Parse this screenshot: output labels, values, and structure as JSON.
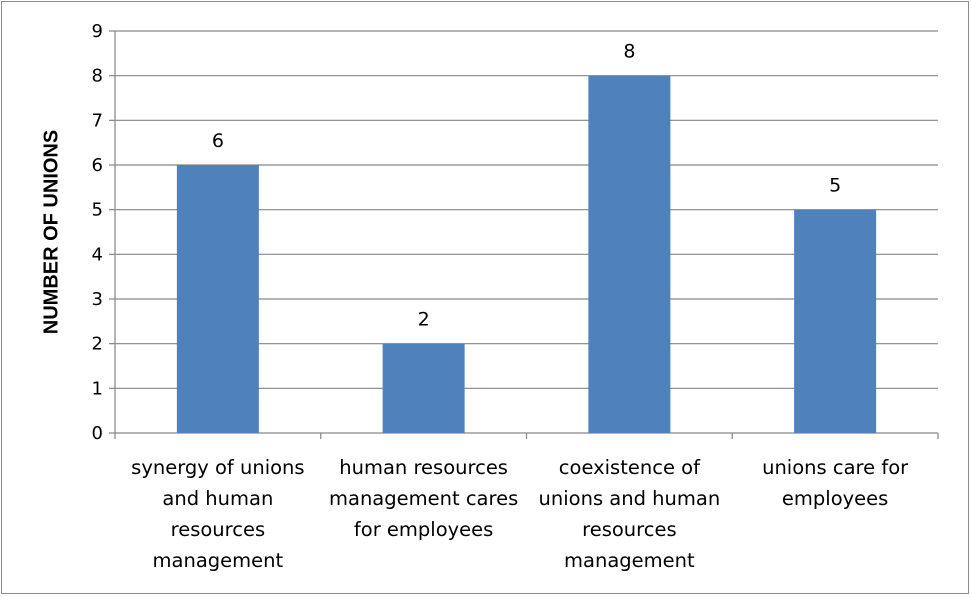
{
  "chart_data": {
    "type": "bar",
    "title": "",
    "xlabel": "",
    "ylabel": "NUMBER OF UNIONS",
    "ylim": [
      0,
      9
    ],
    "yticks": [
      "0",
      "1",
      "2",
      "3",
      "4",
      "5",
      "6",
      "7",
      "8",
      "9"
    ],
    "categories": [
      "synergy of unions and human resources management",
      "human resources management cares for employees",
      "coexistence of unions and human resources management",
      "unions care for employees"
    ],
    "category_lines": [
      [
        "synergy of unions",
        "and human",
        "resources",
        "management"
      ],
      [
        "human resources",
        "management cares",
        "for employees"
      ],
      [
        "coexistence of",
        "unions and human",
        "resources",
        "management"
      ],
      [
        "unions care for",
        "employees"
      ]
    ],
    "values": [
      6,
      2,
      8,
      5
    ],
    "data_labels": [
      "6",
      "2",
      "8",
      "5"
    ],
    "grid": true,
    "legend": "none",
    "colors": {
      "bar": "#4f81bd",
      "grid": "#868686",
      "axis": "#868686"
    }
  }
}
